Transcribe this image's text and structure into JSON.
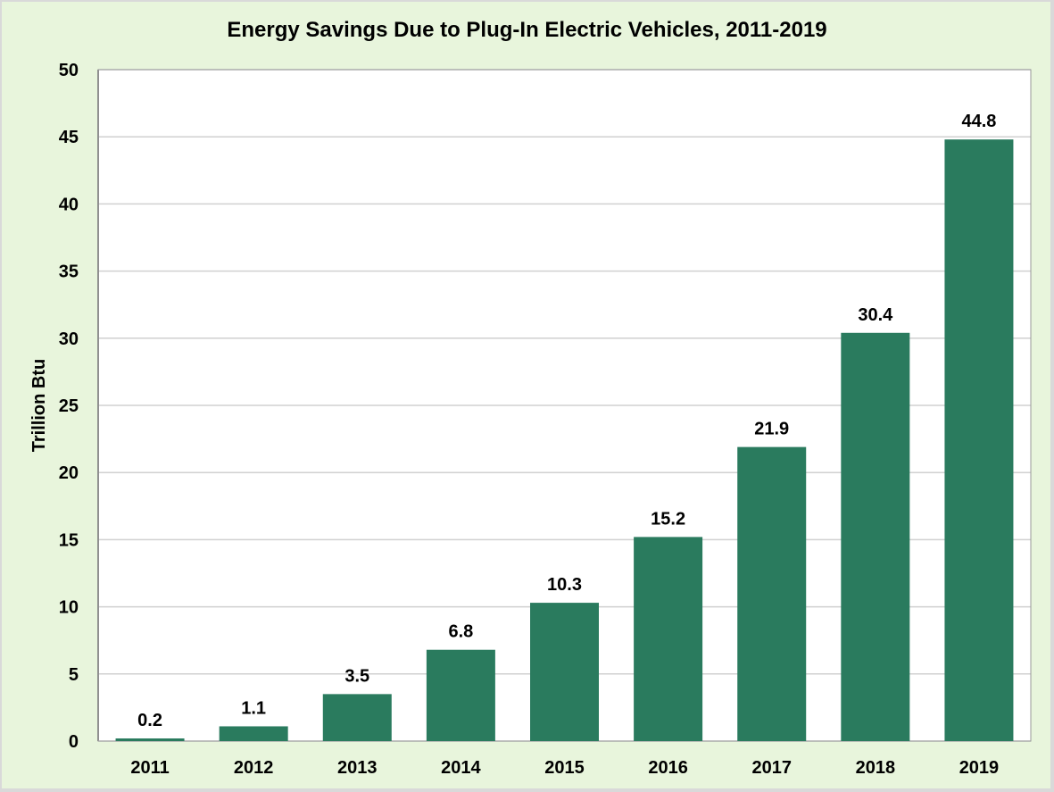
{
  "chart_data": {
    "type": "bar",
    "title": "Energy Savings Due to Plug-In Electric Vehicles, 2011-2019",
    "xlabel": "",
    "ylabel": "Trillion Btu",
    "categories": [
      "2011",
      "2012",
      "2013",
      "2014",
      "2015",
      "2016",
      "2017",
      "2018",
      "2019"
    ],
    "values": [
      0.2,
      1.1,
      3.5,
      6.8,
      10.3,
      15.2,
      21.9,
      30.4,
      44.8
    ],
    "data_labels": [
      "0.2",
      "1.1",
      "3.5",
      "6.8",
      "10.3",
      "15.2",
      "21.9",
      "30.4",
      "44.8"
    ],
    "ylim": [
      0,
      50
    ],
    "yticks": [
      0,
      5,
      10,
      15,
      20,
      25,
      30,
      35,
      40,
      45,
      50
    ],
    "grid": true,
    "colors": {
      "bar": "#2a7b5e",
      "background": "#e8f5dc",
      "plot": "#ffffff"
    }
  }
}
